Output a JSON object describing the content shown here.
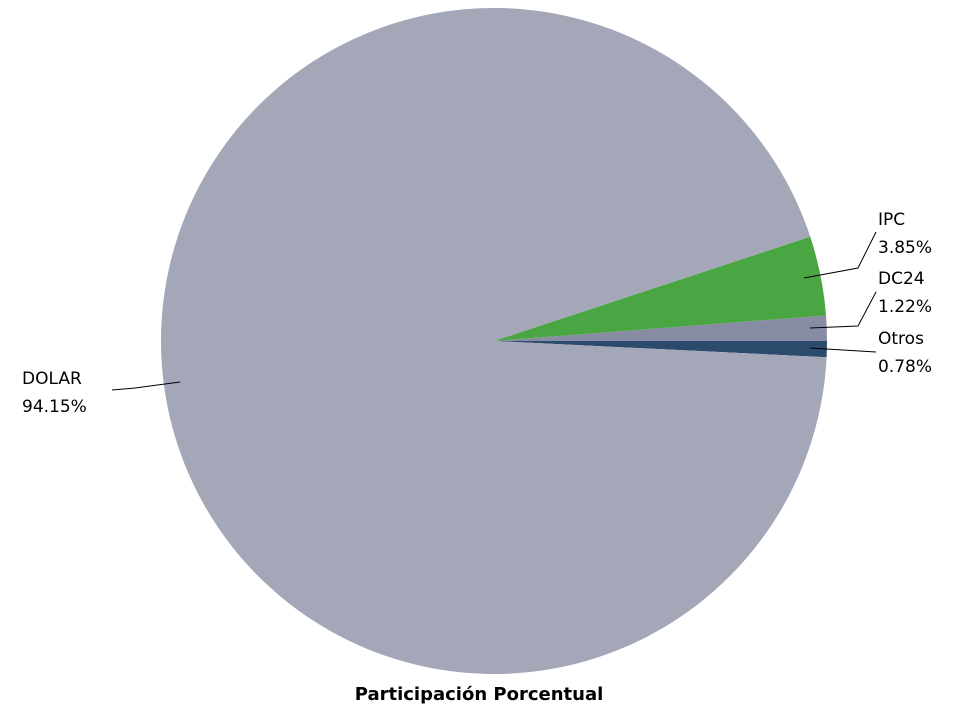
{
  "chart_data": {
    "type": "pie",
    "title": "Participación Porcentual",
    "slices": [
      {
        "name": "DOLAR",
        "value": 94.15,
        "label": "94.15%",
        "color": "#a4a7b8"
      },
      {
        "name": "IPC",
        "value": 3.85,
        "label": "3.85%",
        "color": "#4aa642"
      },
      {
        "name": "DC24",
        "value": 1.22,
        "label": "1.22%",
        "color": "#878ca3"
      },
      {
        "name": "Otros",
        "value": 0.78,
        "label": "0.78%",
        "color": "#2c4a6c"
      }
    ]
  }
}
